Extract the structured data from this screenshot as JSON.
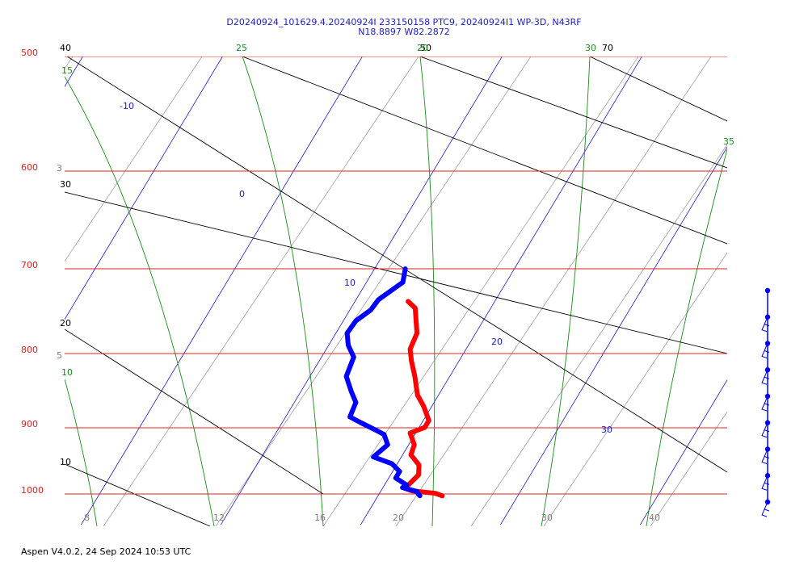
{
  "header": {
    "line1": "D20240924_101629.4.20240924I 233150158 PTC9, 20240924I1 WP-3D, N43RF",
    "line2": "N18.8897 W82.2872"
  },
  "footer": "Aspen V4.0.2, 24 Sep 2024  10:53 UTC",
  "colors": {
    "isobar": "#e02020",
    "dry_adiabat": "#000000",
    "isotherm": "#1a1acc",
    "moist_adiabat": "#1a8a1a",
    "mixing_ratio": "#a0a0a0",
    "temperature": "#ff0000",
    "dewpoint": "#0000ff",
    "wind": "#0000ff"
  },
  "chart_data": {
    "type": "skew-t log-p",
    "title": "",
    "pressure_range_hPa": [
      1000,
      500
    ],
    "pressure_labels": [
      "500",
      "600",
      "700",
      "800",
      "900",
      "1000"
    ],
    "mixing_ratio_bottom_labels": [
      "8",
      "12",
      "16",
      "20",
      "30",
      "40"
    ],
    "mixing_ratio_side_labels": [
      "3",
      "5"
    ],
    "isotherm_labels": [
      "-10",
      "0",
      "10",
      "20",
      "30"
    ],
    "dry_adiabat_labels": [
      "40",
      "30",
      "20",
      "10",
      "50",
      "70"
    ],
    "moist_adiabat_labels": [
      "15",
      "10",
      "20",
      "25",
      "30",
      "35"
    ],
    "grid": true,
    "series": [
      {
        "variable": "temperature",
        "points": [
          [
            1003,
            24.6
          ],
          [
            999,
            24.0
          ],
          [
            995,
            22.2
          ],
          [
            991,
            21.6
          ],
          [
            981,
            21.8
          ],
          [
            970,
            22.0
          ],
          [
            955,
            21.6
          ],
          [
            940,
            20.6
          ],
          [
            925,
            20.4
          ],
          [
            908,
            19.6
          ],
          [
            900,
            20.4
          ],
          [
            890,
            20.4
          ],
          [
            870,
            19.4
          ],
          [
            855,
            18.5
          ],
          [
            830,
            17.5
          ],
          [
            810,
            16.6
          ],
          [
            795,
            16.0
          ],
          [
            775,
            15.8
          ],
          [
            765,
            15.4
          ],
          [
            745,
            14.6
          ],
          [
            737,
            13.8
          ]
        ]
      },
      {
        "variable": "dewpoint",
        "points": [
          [
            1003,
            23.0
          ],
          [
            1000,
            22.8
          ],
          [
            996,
            22.6
          ],
          [
            990,
            21.4
          ],
          [
            986,
            21.6
          ],
          [
            975,
            20.5
          ],
          [
            965,
            20.5
          ],
          [
            953,
            19.6
          ],
          [
            943,
            18.0
          ],
          [
            925,
            18.5
          ],
          [
            910,
            17.8
          ],
          [
            902,
            16.8
          ],
          [
            893,
            15.6
          ],
          [
            885,
            14.6
          ],
          [
            865,
            14.4
          ],
          [
            850,
            13.6
          ],
          [
            830,
            12.6
          ],
          [
            805,
            12.3
          ],
          [
            790,
            11.4
          ],
          [
            775,
            10.8
          ],
          [
            760,
            10.9
          ],
          [
            747,
            11.5
          ],
          [
            735,
            11.6
          ],
          [
            715,
            12.6
          ],
          [
            700,
            12.2
          ]
        ]
      }
    ],
    "wind_profile_points": 9
  }
}
